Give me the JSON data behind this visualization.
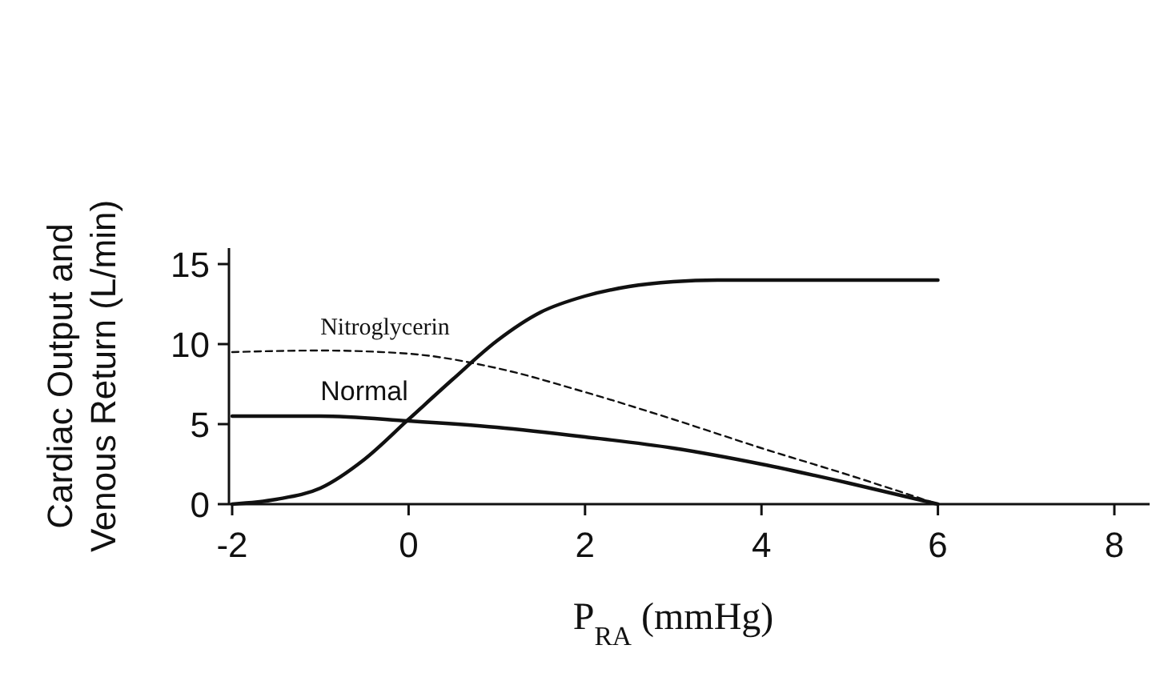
{
  "chart_data": {
    "type": "line",
    "xlabel": "P$_{RA}$ (mmHg)",
    "ylabel": "Cardiac Output and\nVenous Return (L/min)",
    "xlim": [
      -2,
      8.4
    ],
    "ylim": [
      0,
      16
    ],
    "xticks": [
      -2,
      0,
      2,
      4,
      6,
      8
    ],
    "yticks": [
      0,
      5,
      10,
      15
    ],
    "grid": false,
    "marker": "none",
    "series": [
      {
        "color": "#111111",
        "line_style": "solid",
        "x": [
          -2,
          -1.5,
          -1,
          -0.5,
          0,
          0.5,
          1,
          1.5,
          2,
          2.5,
          3,
          3.5,
          4,
          6
        ],
        "values": [
          0,
          0.3,
          1,
          2.8,
          5.3,
          7.8,
          10.2,
          12,
          13,
          13.6,
          13.9,
          14,
          14,
          14
        ]
      },
      {
        "name": "Normal",
        "color": "#111111",
        "line_style": "solid",
        "x": [
          -2,
          -1,
          0,
          1,
          2,
          3,
          4,
          5,
          6
        ],
        "values": [
          5.5,
          5.5,
          5.2,
          4.8,
          4.2,
          3.5,
          2.5,
          1.3,
          0
        ]
      },
      {
        "name": "Nitroglycerin",
        "color": "#111111",
        "line_style": "dashed",
        "x": [
          -2,
          -1,
          0,
          1,
          2,
          3,
          4,
          5,
          6
        ],
        "values": [
          9.5,
          9.6,
          9.4,
          8.5,
          7,
          5.3,
          3.5,
          1.8,
          0
        ]
      }
    ]
  }
}
